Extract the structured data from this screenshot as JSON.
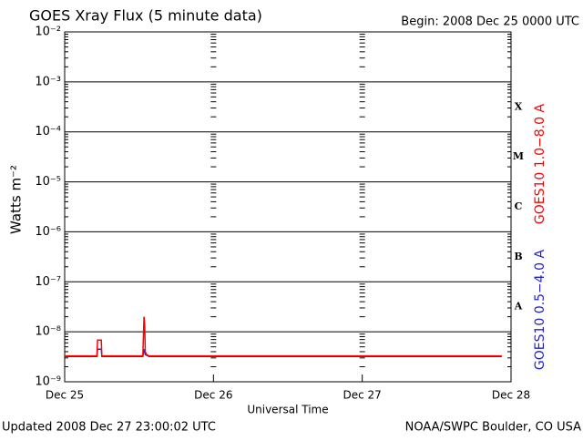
{
  "chart_data": {
    "type": "line",
    "title": "GOES Xray Flux (5 minute data)",
    "subtitle": "Begin:  2008 Dec 25 0000 UTC",
    "x_label": "Universal Time",
    "y_label": "Watts m⁻²",
    "footer_left": "Updated 2008 Dec 27 23:00:02 UTC",
    "footer_right": "NOAA/SWPC Boulder, CO USA",
    "log_y": true,
    "grid": true,
    "xlim": [
      0,
      72
    ],
    "xticks": [
      {
        "value": 0,
        "label": "Dec 25"
      },
      {
        "value": 24,
        "label": "Dec 26"
      },
      {
        "value": 48,
        "label": "Dec 27"
      },
      {
        "value": 72,
        "label": "Dec 28"
      }
    ],
    "ylim": [
      1e-09,
      0.01
    ],
    "yticks": [
      {
        "value": 1e-09,
        "label": "10⁻⁹"
      },
      {
        "value": 1e-08,
        "label": "10⁻⁸"
      },
      {
        "value": 1e-07,
        "label": "10⁻⁷"
      },
      {
        "value": 1e-06,
        "label": "10⁻⁶"
      },
      {
        "value": 1e-05,
        "label": "10⁻⁵"
      },
      {
        "value": 0.0001,
        "label": "10⁻⁴"
      },
      {
        "value": 0.001,
        "label": "10⁻³"
      },
      {
        "value": 0.01,
        "label": "10⁻²"
      }
    ],
    "flare_classes": [
      {
        "label": "A",
        "value": 1e-08
      },
      {
        "label": "B",
        "value": 1e-07
      },
      {
        "label": "C",
        "value": 1e-06
      },
      {
        "label": "M",
        "value": 1e-05
      },
      {
        "label": "X",
        "value": 0.0001
      }
    ],
    "x": [
      0,
      5.2,
      5.3,
      5.9,
      6.0,
      12.6,
      12.8,
      12.9,
      13.0,
      13.2,
      13.6,
      70.5
    ],
    "series": [
      {
        "name": "GOES10 1.0−8.0 A",
        "color": "#ff0000",
        "values": [
          3.3e-09,
          3.3e-09,
          6.8e-09,
          6.8e-09,
          3.3e-09,
          3.3e-09,
          2e-08,
          1.4e-08,
          4e-09,
          3.5e-09,
          3.3e-09,
          3.3e-09
        ]
      },
      {
        "name": "GOES10 0.5−4.0 A",
        "color": "#2222cc",
        "values": [
          3.2e-09,
          3.2e-09,
          4.5e-09,
          4.5e-09,
          3.2e-09,
          3.2e-09,
          4.5e-09,
          4e-09,
          3.5e-09,
          3.4e-09,
          3.2e-09,
          3.2e-09
        ]
      }
    ]
  }
}
